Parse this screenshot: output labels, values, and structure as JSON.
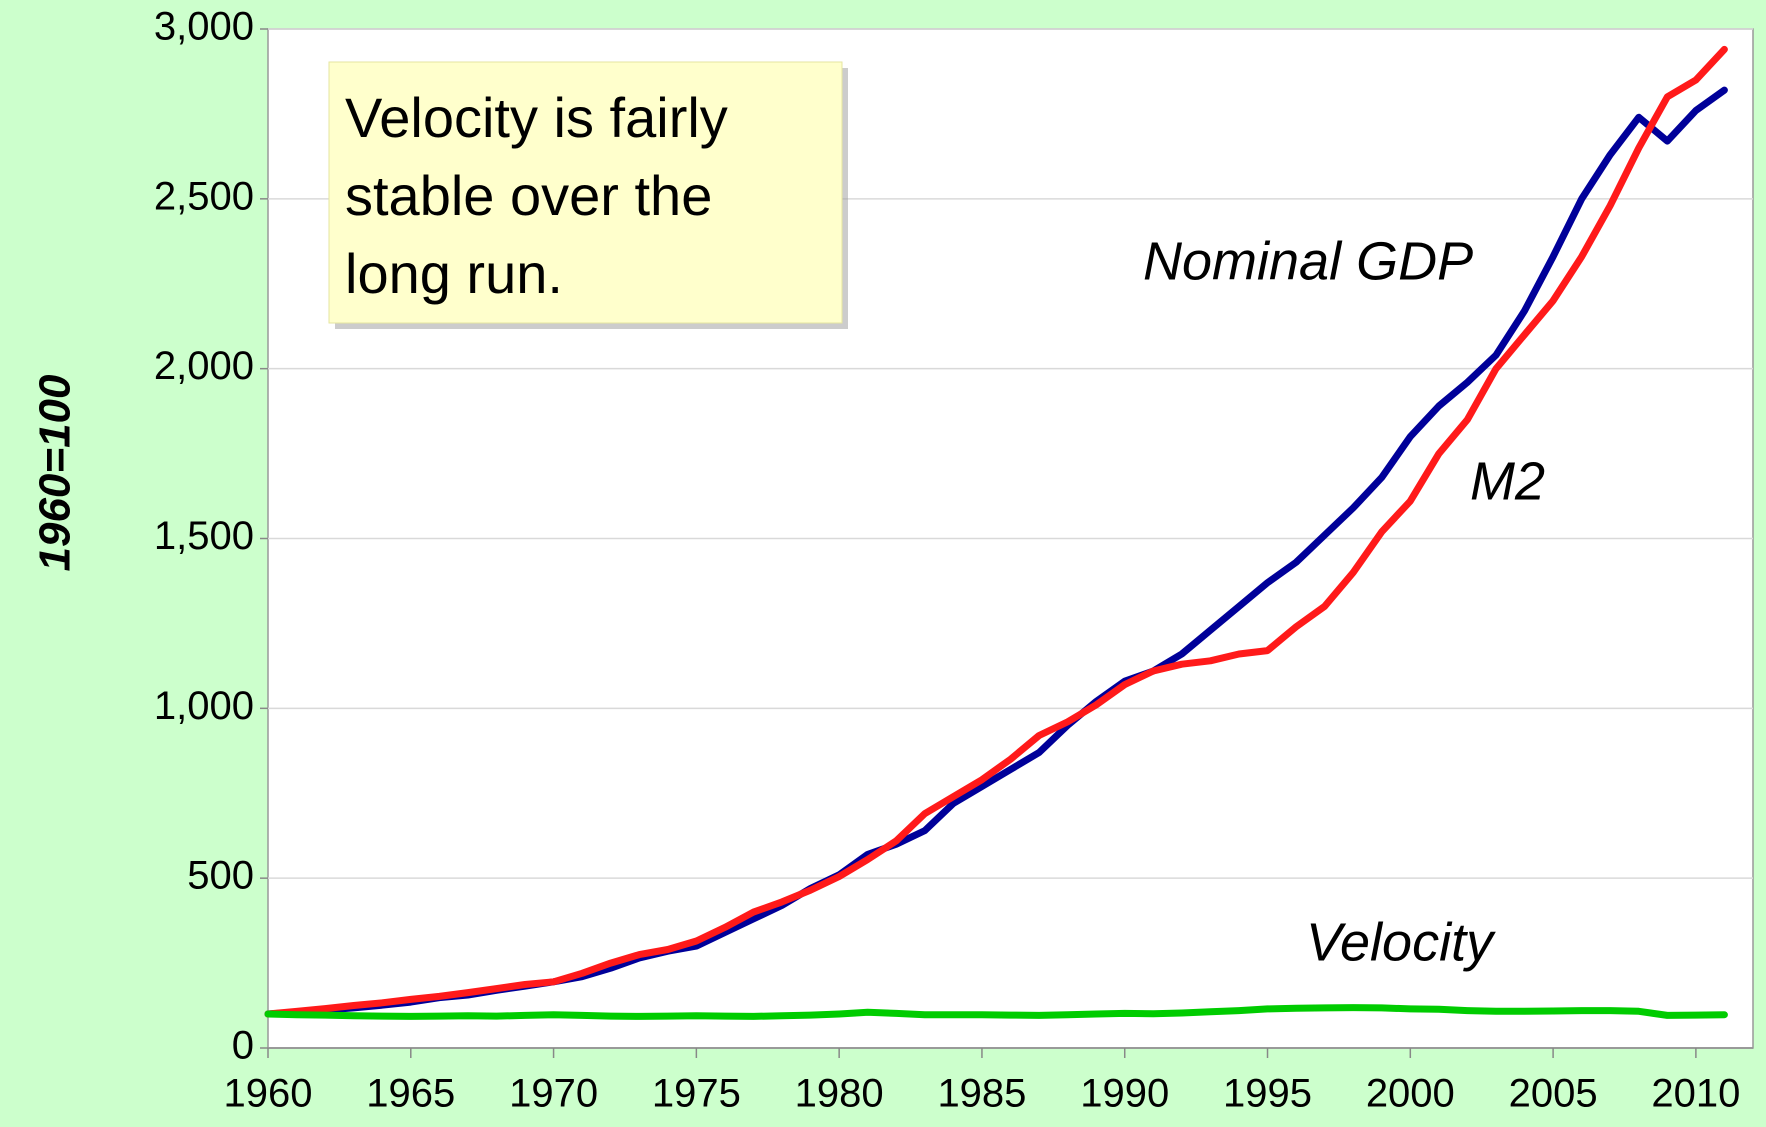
{
  "chart_data": {
    "type": "line",
    "y_label": "1960=100",
    "annotation": [
      "Velocity is fairly",
      "stable over the",
      "long run."
    ],
    "x": [
      1960,
      1961,
      1962,
      1963,
      1964,
      1965,
      1966,
      1967,
      1968,
      1969,
      1970,
      1971,
      1972,
      1973,
      1974,
      1975,
      1976,
      1977,
      1978,
      1979,
      1980,
      1981,
      1982,
      1983,
      1984,
      1985,
      1986,
      1987,
      1988,
      1989,
      1990,
      1991,
      1992,
      1993,
      1994,
      1995,
      1996,
      1997,
      1998,
      1999,
      2000,
      2001,
      2002,
      2003,
      2004,
      2005,
      2006,
      2007,
      2008,
      2009,
      2010,
      2011
    ],
    "series": [
      {
        "name": "Nominal GDP",
        "color": "#000099",
        "values": [
          100,
          105,
          112,
          118,
          126,
          135,
          148,
          156,
          170,
          182,
          195,
          210,
          235,
          265,
          285,
          300,
          340,
          380,
          420,
          470,
          510,
          570,
          600,
          640,
          720,
          770,
          820,
          870,
          950,
          1020,
          1080,
          1110,
          1160,
          1230,
          1300,
          1370,
          1430,
          1510,
          1590,
          1680,
          1800,
          1890,
          1960,
          2040,
          2170,
          2330,
          2500,
          2630,
          2740,
          2670,
          2760,
          2820
        ]
      },
      {
        "name": "M2",
        "color": "#ff1a1a",
        "values": [
          100,
          108,
          116,
          125,
          133,
          143,
          152,
          163,
          175,
          187,
          195,
          220,
          250,
          275,
          290,
          315,
          355,
          400,
          430,
          465,
          505,
          555,
          610,
          690,
          740,
          790,
          850,
          920,
          960,
          1010,
          1070,
          1110,
          1130,
          1140,
          1160,
          1170,
          1240,
          1300,
          1400,
          1520,
          1610,
          1750,
          1850,
          2000,
          2100,
          2200,
          2330,
          2480,
          2650,
          2800,
          2850,
          2940
        ]
      },
      {
        "name": "Velocity",
        "color": "#00cc00",
        "values": [
          100,
          98,
          97,
          95,
          94,
          93,
          94,
          95,
          94,
          96,
          98,
          96,
          94,
          93,
          94,
          95,
          94,
          93,
          95,
          97,
          100,
          105,
          102,
          98,
          98,
          98,
          97,
          96,
          98,
          100,
          102,
          101,
          103,
          107,
          110,
          115,
          117,
          118,
          119,
          118,
          115,
          114,
          110,
          108,
          108,
          109,
          110,
          110,
          108,
          96,
          97,
          98
        ]
      }
    ],
    "xlim": [
      1960,
      2012
    ],
    "xticks": [
      1960,
      1965,
      1970,
      1975,
      1980,
      1985,
      1990,
      1995,
      2000,
      2005,
      2010
    ],
    "ylim": [
      0,
      3000
    ],
    "yticks": [
      0,
      500,
      {
        "value": 1000,
        "label": "1,000"
      },
      {
        "value": 1500,
        "label": "1,500"
      },
      {
        "value": 2000,
        "label": "2,000"
      },
      {
        "value": 2500,
        "label": "2,500"
      },
      {
        "value": 3000,
        "label": "3,000"
      }
    ],
    "grid": true
  }
}
